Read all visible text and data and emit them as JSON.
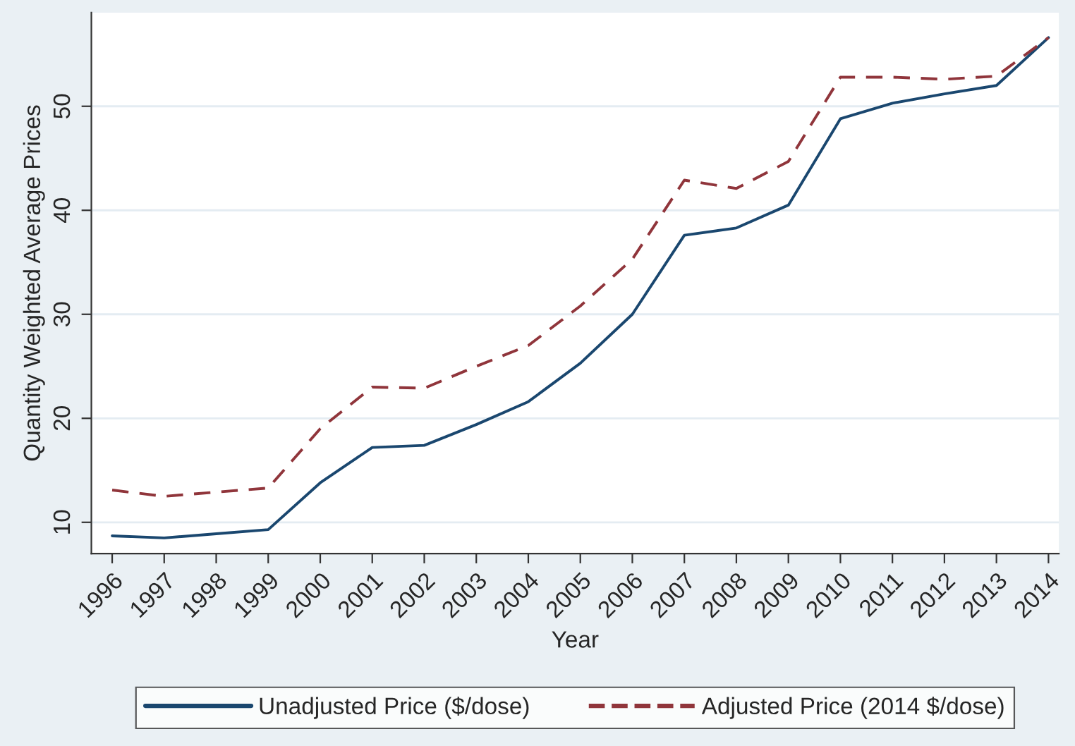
{
  "chart_data": {
    "type": "line",
    "xlabel": "Year",
    "ylabel": "Quantity Weighted Average Prices",
    "x": [
      1996,
      1997,
      1998,
      1999,
      2000,
      2001,
      2002,
      2003,
      2004,
      2005,
      2006,
      2007,
      2008,
      2009,
      2010,
      2011,
      2012,
      2013,
      2014
    ],
    "series": [
      {
        "name": "Unadjusted Price ($/dose)",
        "color": "#1a476f",
        "line_style": "solid",
        "values": [
          8.7,
          8.5,
          8.9,
          9.3,
          13.8,
          17.2,
          17.4,
          19.4,
          21.6,
          25.3,
          30.0,
          37.6,
          38.3,
          40.5,
          48.8,
          50.3,
          51.2,
          52.0,
          56.6
        ]
      },
      {
        "name": "Adjusted Price (2014 $/dose)",
        "color": "#90353b",
        "line_style": "dashed",
        "values": [
          13.1,
          12.5,
          12.9,
          13.3,
          19.0,
          23.0,
          22.9,
          25.0,
          27.0,
          30.8,
          35.3,
          42.9,
          42.1,
          44.7,
          52.8,
          52.8,
          52.6,
          52.9,
          56.6
        ]
      }
    ],
    "xlim": [
      1995.6,
      2014.2
    ],
    "xticks": [
      1996,
      1997,
      1998,
      1999,
      2000,
      2001,
      2002,
      2003,
      2004,
      2005,
      2006,
      2007,
      2008,
      2009,
      2010,
      2011,
      2012,
      2013,
      2014
    ],
    "ylim": [
      7,
      59
    ],
    "yticks": [
      10,
      20,
      30,
      40,
      50
    ],
    "grid": "y",
    "legend": "bottom"
  }
}
